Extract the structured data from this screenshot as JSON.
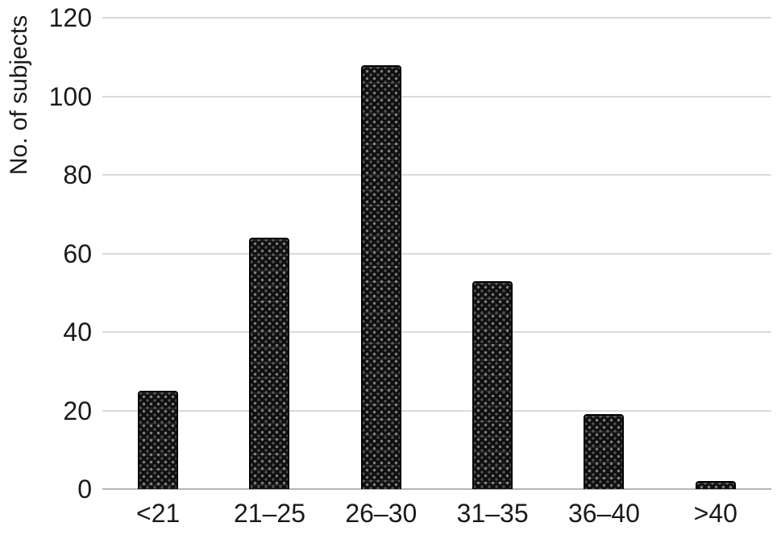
{
  "figure": {
    "background": "#ffffff"
  },
  "chart_data": {
    "type": "bar",
    "title": "",
    "xlabel": "",
    "ylabel": "No. of subjects",
    "categories": [
      "<21",
      "21–25",
      "26–30",
      "31–35",
      "36–40",
      ">40"
    ],
    "values": [
      25,
      64,
      108,
      53,
      19,
      2
    ],
    "ylim": [
      0,
      120
    ],
    "yticks": [
      0,
      20,
      40,
      60,
      80,
      100,
      120
    ],
    "grid": "horizontal",
    "legend_position": "none",
    "colors": {
      "bar_fill": "#0f0f0f",
      "bar_pattern_dot": "#b0b0b0",
      "bar_border": "#000000",
      "gridline": "#dadada",
      "baseline": "#b5b5b5",
      "axis_text": "#1a1a1a"
    },
    "bar_pattern": "dotted-weave (light dots on black)"
  }
}
